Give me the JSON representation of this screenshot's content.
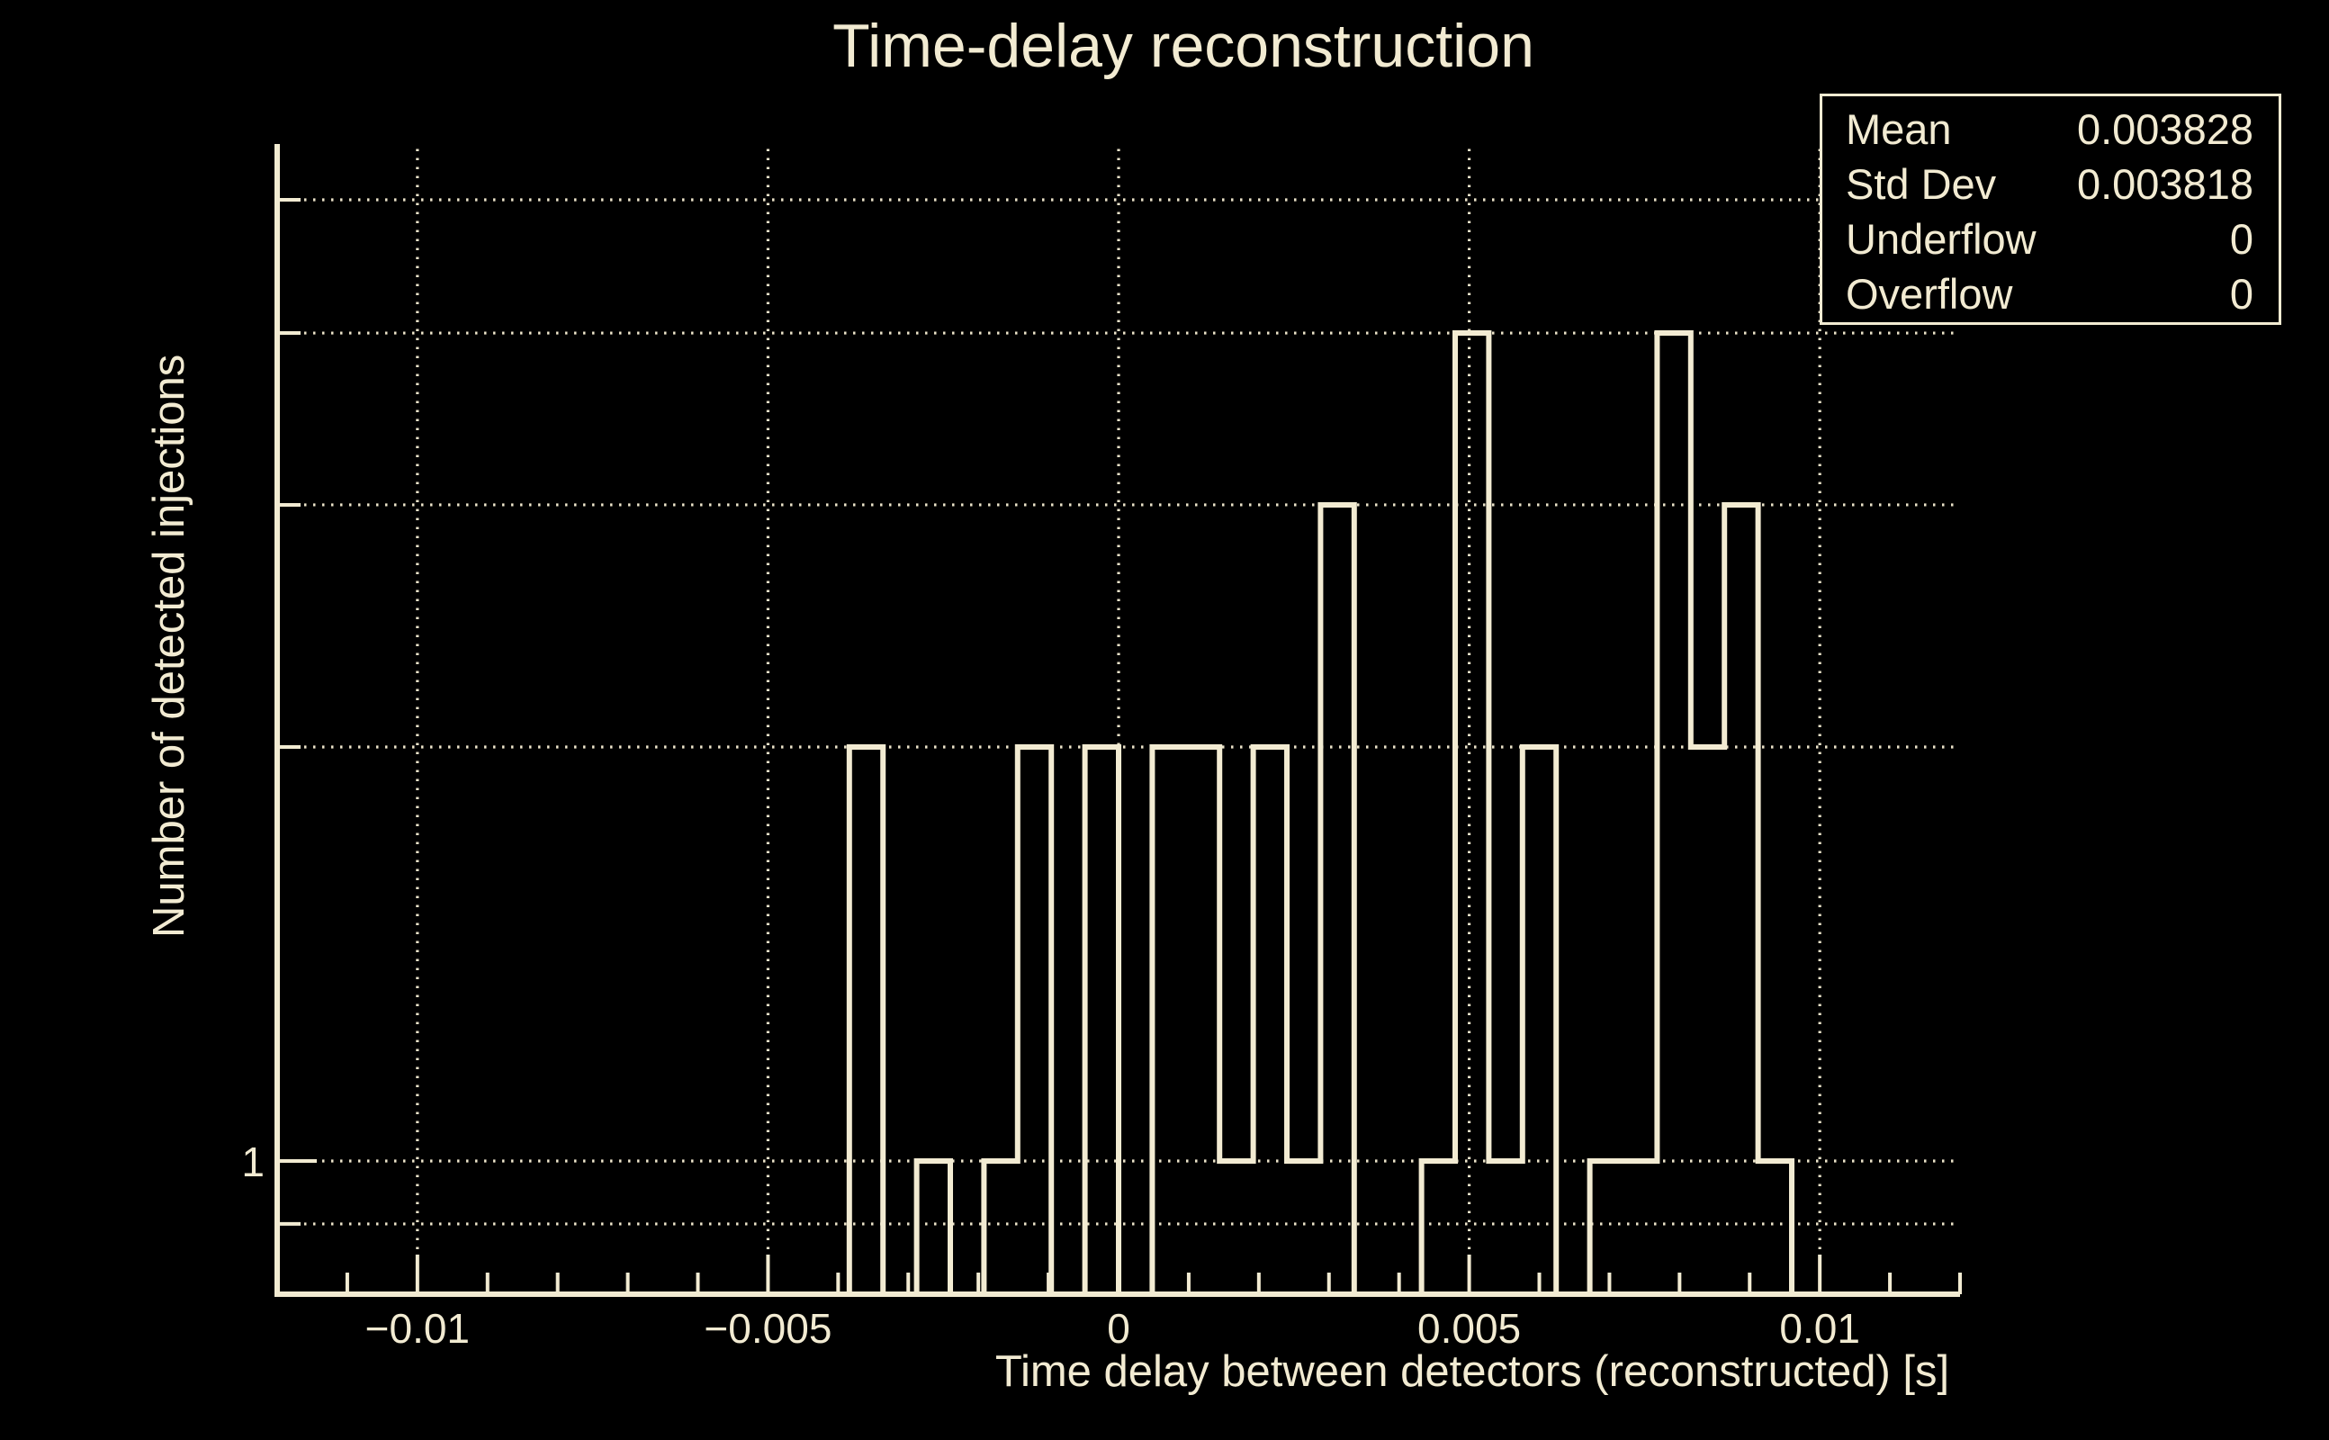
{
  "title": "Time-delay reconstruction",
  "stats": {
    "rows": [
      {
        "label": "Mean",
        "value": "0.003828"
      },
      {
        "label": "Std Dev",
        "value": "0.003818"
      },
      {
        "label": "Underflow",
        "value": "0"
      },
      {
        "label": "Overflow",
        "value": "0"
      }
    ]
  },
  "axes": {
    "x": {
      "title": "Time delay between detectors (reconstructed) [s]",
      "min": -0.012,
      "max": 0.012,
      "minor_tick_step": 0.001,
      "major_ticks": [
        {
          "value": -0.01,
          "label": "−0.01"
        },
        {
          "value": -0.005,
          "label": "−0.005"
        },
        {
          "value": 0,
          "label": "0"
        },
        {
          "value": 0.005,
          "label": "0.005"
        },
        {
          "value": 0.01,
          "label": "0.01"
        }
      ]
    },
    "y": {
      "title": "Number of detected injections",
      "scale": "log",
      "min": 0.8,
      "max": 5.49,
      "gridline_values": [
        0.9,
        1,
        2,
        3,
        4,
        5
      ],
      "labeled_ticks": [
        {
          "value": 1,
          "label": "1"
        }
      ]
    }
  },
  "chart_data": {
    "type": "bar",
    "title": "Time-delay reconstruction",
    "xlabel": "Time delay between detectors (reconstructed) [s]",
    "ylabel": "Number of detected injections",
    "yscale": "log",
    "ylim": [
      0.8,
      5.49
    ],
    "xlim": [
      -0.012,
      0.012
    ],
    "grid": true,
    "x_start": -0.012,
    "bin_width": 0.00048,
    "bin_counts": [
      0,
      0,
      0,
      0,
      0,
      0,
      0,
      0,
      0,
      0,
      0,
      0,
      0,
      0,
      0,
      0,
      0,
      2,
      0,
      1,
      0,
      1,
      2,
      0,
      2,
      0,
      2,
      2,
      1,
      2,
      1,
      3,
      0,
      0,
      1,
      4,
      1,
      2,
      0,
      1,
      1,
      4,
      2,
      3,
      1,
      0,
      0,
      0,
      0,
      0
    ],
    "stats": {
      "mean": 0.003828,
      "std_dev": 0.003818,
      "underflow": 0,
      "overflow": 0
    }
  },
  "colors": {
    "background": "#000000",
    "foreground": "#f2ebd2",
    "gridline": "#ece4ca"
  }
}
